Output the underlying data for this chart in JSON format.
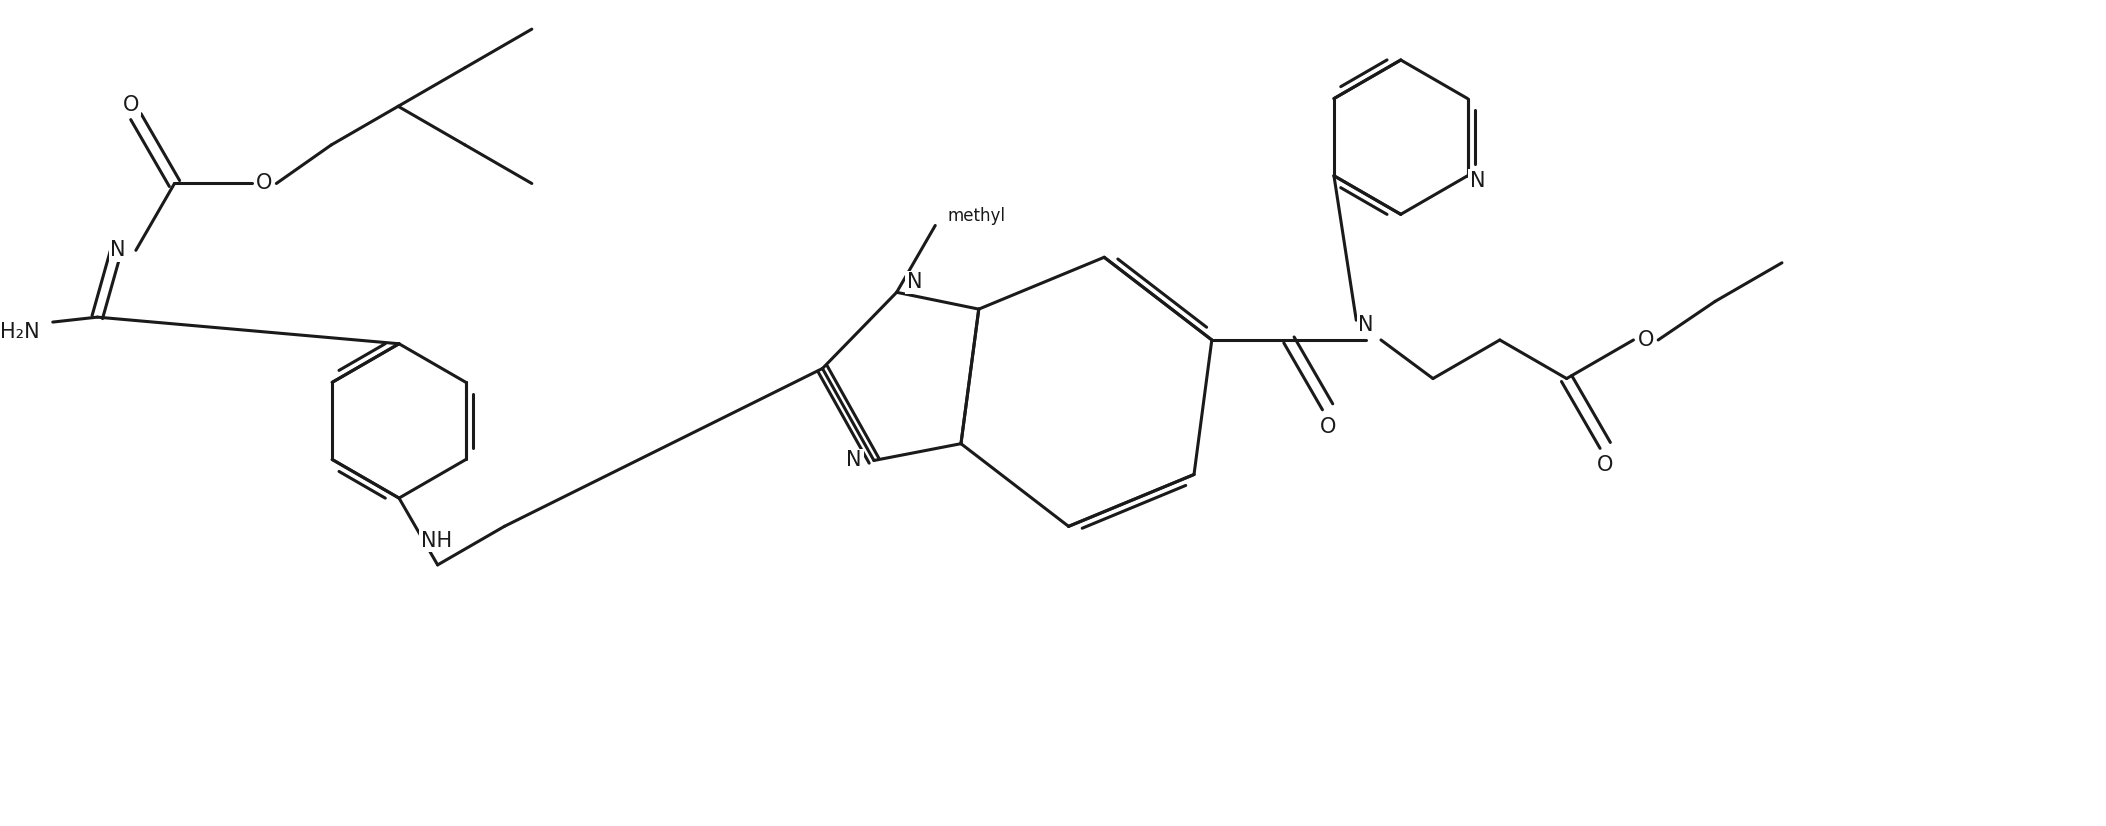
{
  "bg_color": "#ffffff",
  "line_color": "#1a1a1a",
  "line_width": 2.2,
  "font_size": 15,
  "figsize": [
    21.06,
    8.26
  ],
  "xlim": [
    0,
    21.06
  ],
  "ylim": [
    0,
    8.26
  ]
}
